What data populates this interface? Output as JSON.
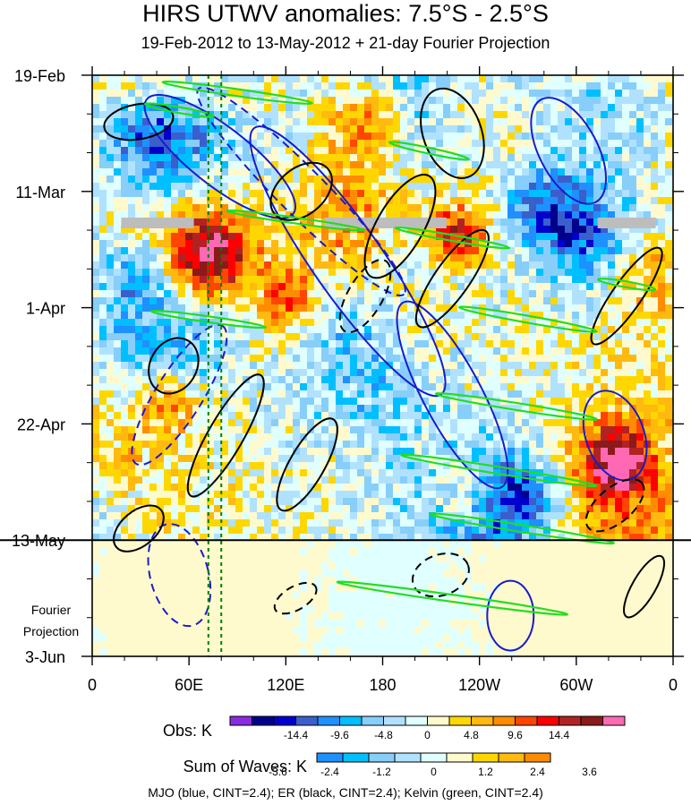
{
  "chart_data": {
    "type": "heatmap",
    "title": "HIRS UTWV anomalies: 7.5°S - 2.5°S",
    "subtitle": "19-Feb-2012 to 13-May-2012 + 21-day Fourier Projection",
    "x_ticks": [
      "0",
      "60E",
      "120E",
      "180",
      "120W",
      "60W",
      "0"
    ],
    "x_values_deg_east": [
      0,
      60,
      120,
      180,
      240,
      300,
      360
    ],
    "y_ticks": [
      "19-Feb",
      "11-Mar",
      "1-Apr",
      "22-Apr",
      "13-May",
      "3-Jun"
    ],
    "y_values_day": [
      0,
      21,
      42,
      63,
      84,
      105
    ],
    "projection_label_line1": "Fourier",
    "projection_label_line2": "Projection",
    "projection_start": "13-May",
    "obs_colorbar": {
      "label": "Obs: K",
      "tick_labels": [
        "-14.4",
        "-9.6",
        "-4.8",
        "0",
        "4.8",
        "9.6",
        "14.4"
      ],
      "colors": [
        "#8a2be2",
        "#00008b",
        "#0000cd",
        "#3a5fcd",
        "#1e90ff",
        "#00bfff",
        "#87cefa",
        "#b0e2ff",
        "#e0ffff",
        "#fffacd",
        "#ffd700",
        "#ffb90f",
        "#ff8c00",
        "#ff4500",
        "#ff0000",
        "#b22222",
        "#8b1a1a",
        "#ff69b4"
      ]
    },
    "waves_colorbar": {
      "label": "Sum of Waves: K",
      "tick_labels": [
        "-3.6",
        "-2.4",
        "-1.2",
        "0",
        "1.2",
        "2.4",
        "3.6"
      ],
      "colors": [
        "#1e90ff",
        "#00bfff",
        "#87cefa",
        "#b0e2ff",
        "#e0ffff",
        "#fffacd",
        "#ffd700",
        "#ffb90f",
        "#ff8c00"
      ]
    },
    "legend_text": "MJO (blue, CINT=2.4); ER (black, CINT=2.4); Kelvin (green, CINT=2.4)",
    "contour_colors": {
      "mjo": "#1a1acd",
      "er": "#000000",
      "kelvin": "#22dd22",
      "reference_lines": "#008000"
    },
    "reference_longitudes_deg": [
      72,
      80
    ]
  }
}
